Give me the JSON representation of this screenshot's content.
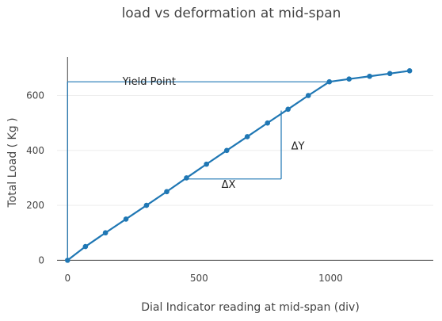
{
  "chart_data": {
    "type": "line",
    "title": "load vs deformation at mid-span",
    "xlabel": "Dial Indicator reading at mid-span (div)",
    "ylabel": "Total Load ( Kg )",
    "xlim": [
      -40,
      1390
    ],
    "ylim": [
      -22,
      740
    ],
    "xticks": [
      0,
      500,
      1000
    ],
    "yticks": [
      0,
      200,
      400,
      600
    ],
    "grid": {
      "x": false,
      "y": true
    },
    "series": [
      {
        "color": "#1f77b4",
        "x": [
          0,
          68,
          144,
          222,
          300,
          377,
          452,
          528,
          605,
          683,
          760,
          838,
          915,
          995,
          1070,
          1148,
          1225,
          1300
        ],
        "y": [
          0,
          50,
          100,
          150,
          200,
          250,
          300,
          350,
          400,
          450,
          500,
          550,
          600,
          650,
          660,
          670,
          680,
          690
        ]
      }
    ],
    "annotations": [
      {
        "id": "yield",
        "text": "Yield Point",
        "at": [
          310,
          650
        ]
      },
      {
        "id": "dx",
        "text": "ΔX",
        "at": [
          612,
          275
        ]
      },
      {
        "id": "dy",
        "text": "ΔY",
        "at": [
          850,
          415
        ]
      }
    ],
    "guide_lines": {
      "yield_line": {
        "x": [
          0,
          995
        ],
        "y": [
          650,
          650
        ]
      },
      "yield_vertical": {
        "x": [
          0,
          0
        ],
        "y": [
          0,
          650
        ]
      },
      "dx_line": {
        "x": [
          452,
          812
        ],
        "y": [
          296,
          296
        ]
      },
      "dy_line": {
        "x": [
          812,
          812
        ],
        "y": [
          296,
          545
        ]
      }
    }
  }
}
